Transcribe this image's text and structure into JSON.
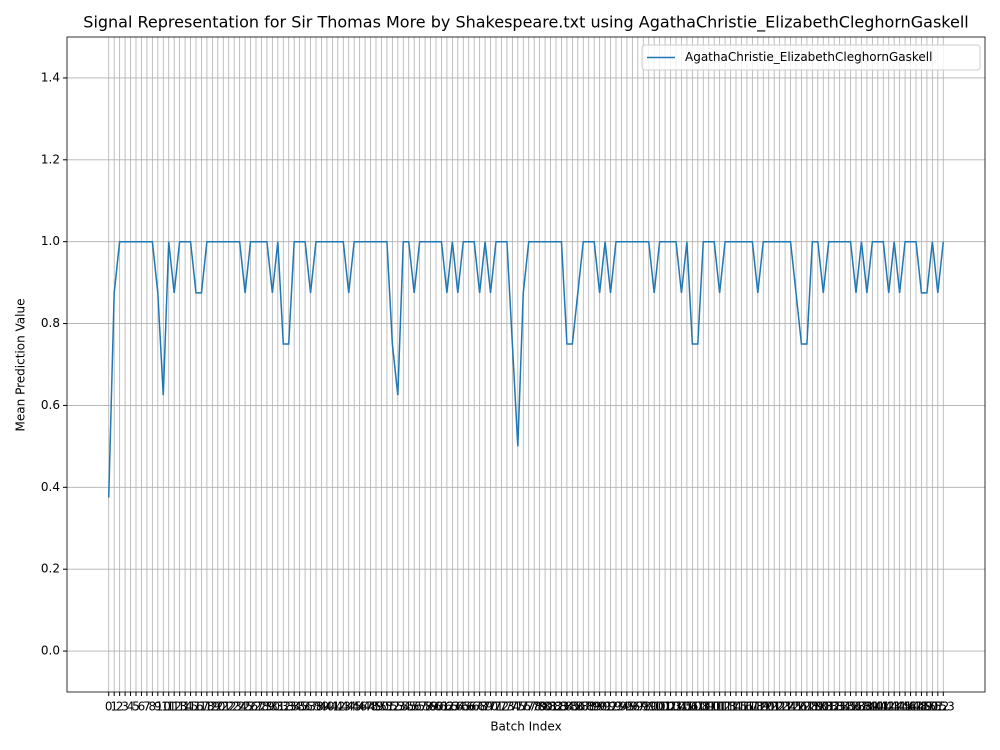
{
  "chart_data": {
    "type": "line",
    "title": "Signal Representation for Sir Thomas More by Shakespeare.txt using AgathaChristie_ElizabethCleghornGaskell",
    "xlabel": "Batch Index",
    "ylabel": "Mean Prediction Value",
    "x": [
      0,
      1,
      2,
      3,
      4,
      5,
      6,
      7,
      8,
      9,
      10,
      11,
      12,
      13,
      14,
      15,
      16,
      17,
      18,
      19,
      20,
      21,
      22,
      23,
      24,
      25,
      26,
      27,
      28,
      29,
      30,
      31,
      32,
      33,
      34,
      35,
      36,
      37,
      38,
      39,
      40,
      41,
      42,
      43,
      44,
      45,
      46,
      47,
      48,
      49,
      50,
      51,
      52,
      53,
      54,
      55,
      56,
      57,
      58,
      59,
      60,
      61,
      62,
      63,
      64,
      65,
      66,
      67,
      68,
      69,
      70,
      71,
      72,
      73,
      74,
      75,
      76,
      77,
      78,
      79,
      80,
      81,
      82,
      83,
      84,
      85,
      86,
      87,
      88,
      89,
      90,
      91,
      92,
      93,
      94,
      95,
      96,
      97,
      98,
      99,
      100,
      101,
      102,
      103,
      104,
      105,
      106,
      107,
      108,
      109,
      110,
      111,
      112,
      113,
      114,
      115,
      116,
      117,
      118,
      119,
      120,
      121,
      122,
      123,
      124,
      125,
      126,
      127,
      128,
      129,
      130,
      131,
      132,
      133,
      134,
      135,
      136,
      137,
      138,
      139,
      140,
      141,
      142,
      143,
      144,
      145,
      146,
      147,
      148,
      149,
      150,
      151,
      152,
      153
    ],
    "series": [
      {
        "name": "AgathaChristie_ElizabethCleghornGaskell",
        "color": "#1f77b4",
        "values": [
          0.375,
          0.875,
          1,
          1,
          1,
          1,
          1,
          1,
          1,
          0.875,
          0.625,
          1,
          0.875,
          1,
          1,
          1,
          0.875,
          0.875,
          1,
          1,
          1,
          1,
          1,
          1,
          1,
          0.875,
          1,
          1,
          1,
          1,
          0.875,
          1,
          0.75,
          0.75,
          1,
          1,
          1,
          0.875,
          1,
          1,
          1,
          1,
          1,
          1,
          0.875,
          1,
          1,
          1,
          1,
          1,
          1,
          1,
          0.75,
          0.625,
          1,
          1,
          0.875,
          1,
          1,
          1,
          1,
          1,
          0.875,
          1,
          0.875,
          1,
          1,
          1,
          0.875,
          1,
          0.875,
          1,
          1,
          1,
          0.75,
          0.5,
          0.875,
          1,
          1,
          1,
          1,
          1,
          1,
          1,
          0.75,
          0.75,
          0.875,
          1,
          1,
          1,
          0.875,
          1,
          0.875,
          1,
          1,
          1,
          1,
          1,
          1,
          1,
          0.875,
          1,
          1,
          1,
          1,
          0.875,
          1,
          0.75,
          0.75,
          1,
          1,
          1,
          0.875,
          1,
          1,
          1,
          1,
          1,
          1,
          0.875,
          1,
          1,
          1,
          1,
          1,
          1,
          0.875,
          0.75,
          0.75,
          1,
          1,
          0.875,
          1,
          1,
          1,
          1,
          1,
          0.875,
          1,
          0.875,
          1,
          1,
          1,
          0.875,
          1,
          0.875,
          1,
          1,
          1,
          0.875,
          0.875,
          1,
          0.875,
          1
        ]
      }
    ],
    "xlim": [
      -7.65,
      160.65
    ],
    "xticks": [
      0,
      1,
      2,
      3,
      4,
      5,
      6,
      7,
      8,
      9,
      10,
      11,
      12,
      13,
      14,
      15,
      16,
      17,
      18,
      19,
      20,
      21,
      22,
      23,
      24,
      25,
      26,
      27,
      28,
      29,
      30,
      31,
      32,
      33,
      34,
      35,
      36,
      37,
      38,
      39,
      40,
      41,
      42,
      43,
      44,
      45,
      46,
      47,
      48,
      49,
      50,
      51,
      52,
      53,
      54,
      55,
      56,
      57,
      58,
      59,
      60,
      61,
      62,
      63,
      64,
      65,
      66,
      67,
      68,
      69,
      70,
      71,
      72,
      73,
      74,
      75,
      76,
      77,
      78,
      79,
      80,
      81,
      82,
      83,
      84,
      85,
      86,
      87,
      88,
      89,
      90,
      91,
      92,
      93,
      94,
      95,
      96,
      97,
      98,
      99,
      100,
      101,
      102,
      103,
      104,
      105,
      106,
      107,
      108,
      109,
      110,
      111,
      112,
      113,
      114,
      115,
      116,
      117,
      118,
      119,
      120,
      121,
      122,
      123,
      124,
      125,
      126,
      127,
      128,
      129,
      130,
      131,
      132,
      133,
      134,
      135,
      136,
      137,
      138,
      139,
      140,
      141,
      142,
      143,
      144,
      145,
      146,
      147,
      148,
      149,
      150,
      151,
      152,
      153
    ],
    "ylim": [
      -0.1,
      1.5
    ],
    "yticks": [
      {
        "value": 0,
        "label": "0.0"
      },
      0.2,
      0.4,
      0.6,
      0.8,
      {
        "value": 1,
        "label": "1.0"
      },
      1.2,
      1.4
    ],
    "grid": true,
    "legend": "upper right"
  }
}
